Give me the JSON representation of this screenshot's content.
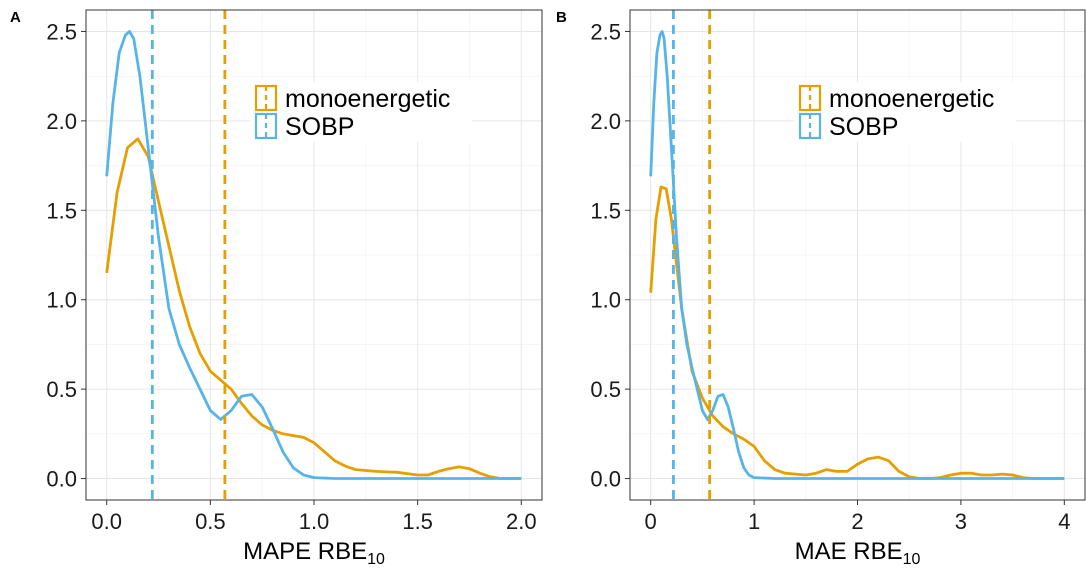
{
  "chart_data": [
    {
      "panel": "A",
      "type": "line",
      "xlabel_main": "MAPE RBE",
      "xlabel_sub": "10",
      "ylabel": "",
      "xlim": [
        -0.1,
        2.1
      ],
      "ylim": [
        -0.12,
        2.62
      ],
      "xticks": [
        0,
        0.5,
        1,
        1.5,
        2
      ],
      "xtick_labels": [
        "0.0",
        "0.5",
        "1.0",
        "1.5",
        "2.0"
      ],
      "yticks": [
        0,
        0.5,
        1,
        1.5,
        2,
        2.5
      ],
      "ytick_labels": [
        "0.0",
        "0.5",
        "1.0",
        "1.5",
        "2.0",
        "2.5"
      ],
      "grid": true,
      "legend": "top-right",
      "series": [
        {
          "name": "monoenergetic",
          "color": "#E69F00",
          "vline": 0.57,
          "x": [
            0,
            0.05,
            0.1,
            0.15,
            0.2,
            0.25,
            0.3,
            0.35,
            0.4,
            0.45,
            0.5,
            0.55,
            0.6,
            0.65,
            0.7,
            0.75,
            0.8,
            0.85,
            0.9,
            0.95,
            1.0,
            1.05,
            1.1,
            1.15,
            1.2,
            1.3,
            1.4,
            1.5,
            1.55,
            1.6,
            1.65,
            1.7,
            1.75,
            1.8,
            1.85,
            1.9,
            2.0
          ],
          "y": [
            1.15,
            1.6,
            1.85,
            1.9,
            1.8,
            1.55,
            1.3,
            1.05,
            0.85,
            0.7,
            0.6,
            0.55,
            0.5,
            0.42,
            0.35,
            0.3,
            0.27,
            0.25,
            0.24,
            0.23,
            0.2,
            0.15,
            0.1,
            0.07,
            0.05,
            0.04,
            0.035,
            0.02,
            0.02,
            0.04,
            0.055,
            0.065,
            0.055,
            0.03,
            0.01,
            0.0,
            0.0
          ]
        },
        {
          "name": "SOBP",
          "color": "#56B4E9",
          "vline": 0.22,
          "x": [
            0,
            0.03,
            0.06,
            0.09,
            0.11,
            0.13,
            0.16,
            0.2,
            0.25,
            0.3,
            0.35,
            0.4,
            0.45,
            0.5,
            0.55,
            0.6,
            0.65,
            0.7,
            0.75,
            0.8,
            0.85,
            0.9,
            0.95,
            1.0,
            1.1,
            1.3,
            1.6,
            2.0
          ],
          "y": [
            1.69,
            2.1,
            2.38,
            2.48,
            2.5,
            2.46,
            2.25,
            1.85,
            1.35,
            0.95,
            0.75,
            0.62,
            0.5,
            0.38,
            0.33,
            0.38,
            0.46,
            0.47,
            0.4,
            0.28,
            0.15,
            0.06,
            0.02,
            0.005,
            0.0,
            0.0,
            0.0,
            0.0
          ]
        }
      ]
    },
    {
      "panel": "B",
      "type": "line",
      "xlabel_main": "MAE RBE",
      "xlabel_sub": "10",
      "ylabel": "",
      "xlim": [
        -0.2,
        4.2
      ],
      "ylim": [
        -0.12,
        2.62
      ],
      "xticks": [
        0,
        1,
        2,
        3,
        4
      ],
      "xtick_labels": [
        "0",
        "1",
        "2",
        "3",
        "4"
      ],
      "yticks": [
        0,
        0.5,
        1,
        1.5,
        2,
        2.5
      ],
      "ytick_labels": [
        "0.0",
        "0.5",
        "1.0",
        "1.5",
        "2.0",
        "2.5"
      ],
      "grid": true,
      "legend": "top-right",
      "series": [
        {
          "name": "monoenergetic",
          "color": "#E69F00",
          "vline": 0.57,
          "x": [
            0,
            0.05,
            0.1,
            0.15,
            0.2,
            0.25,
            0.3,
            0.4,
            0.5,
            0.6,
            0.7,
            0.8,
            0.9,
            1.0,
            1.1,
            1.2,
            1.3,
            1.4,
            1.5,
            1.6,
            1.7,
            1.8,
            1.9,
            2.0,
            2.1,
            2.2,
            2.3,
            2.4,
            2.5,
            2.6,
            2.7,
            2.8,
            2.9,
            3.0,
            3.1,
            3.2,
            3.3,
            3.4,
            3.5,
            3.6,
            3.7,
            3.8,
            4.0
          ],
          "y": [
            1.04,
            1.45,
            1.63,
            1.62,
            1.45,
            1.2,
            0.95,
            0.6,
            0.45,
            0.35,
            0.29,
            0.25,
            0.22,
            0.18,
            0.1,
            0.05,
            0.03,
            0.025,
            0.02,
            0.03,
            0.05,
            0.04,
            0.04,
            0.08,
            0.11,
            0.12,
            0.1,
            0.04,
            0.01,
            0.0,
            0.0,
            0.005,
            0.02,
            0.03,
            0.03,
            0.02,
            0.02,
            0.025,
            0.02,
            0.005,
            0.0,
            0.0,
            0.0
          ]
        },
        {
          "name": "SOBP",
          "color": "#56B4E9",
          "vline": 0.22,
          "x": [
            0,
            0.03,
            0.06,
            0.09,
            0.11,
            0.13,
            0.16,
            0.2,
            0.25,
            0.3,
            0.35,
            0.4,
            0.45,
            0.5,
            0.55,
            0.6,
            0.65,
            0.7,
            0.75,
            0.8,
            0.85,
            0.9,
            0.95,
            1.0,
            1.2,
            1.6,
            2.0,
            3.0,
            4.0
          ],
          "y": [
            1.69,
            2.1,
            2.38,
            2.48,
            2.5,
            2.46,
            2.25,
            1.85,
            1.35,
            0.95,
            0.75,
            0.62,
            0.5,
            0.38,
            0.33,
            0.38,
            0.46,
            0.47,
            0.4,
            0.28,
            0.15,
            0.06,
            0.02,
            0.005,
            0.0,
            0.0,
            0.0,
            0.0,
            0.0
          ]
        }
      ]
    }
  ]
}
